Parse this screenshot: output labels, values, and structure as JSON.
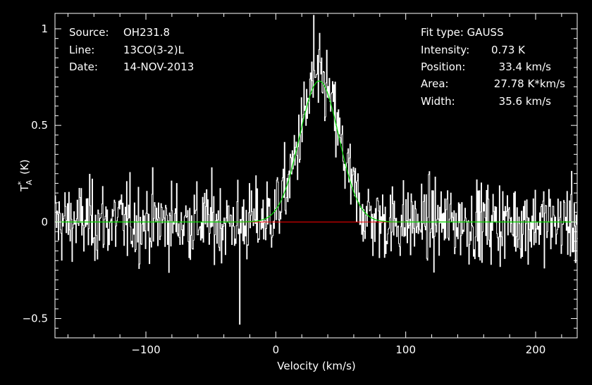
{
  "info_left": [
    {
      "key": "Source:",
      "value": "OH231.8"
    },
    {
      "key": "Line:",
      "value": "13CO(3-2)L"
    },
    {
      "key": "Date:",
      "value": "14-NOV-2013"
    }
  ],
  "info_right": {
    "fit_type": "Fit type: GAUSS",
    "rows": [
      {
        "key": "Intensity:",
        "value": "0.73 K"
      },
      {
        "key": "Position:",
        "value": "33.4 km/s"
      },
      {
        "key": "Area:",
        "value": "27.78 K*km/s"
      },
      {
        "key": "Width:",
        "value": "35.6 km/s"
      }
    ]
  },
  "chart_data": {
    "type": "line",
    "xlabel": "Velocity (km/s)",
    "ylabel_main": "T",
    "ylabel_sup": "*",
    "ylabel_sub": "A",
    "ylabel_unit": "(K)",
    "xlim": [
      -170,
      232
    ],
    "ylim": [
      -0.6,
      1.08
    ],
    "xticks": [
      -100,
      0,
      100,
      200
    ],
    "xtick_labels": [
      "−100",
      "0",
      "100",
      "200"
    ],
    "yticks": [
      -0.5,
      0,
      0.5,
      1
    ],
    "ytick_labels": [
      "−0.5",
      "0",
      "0.5",
      "1"
    ],
    "baseline": {
      "value": 0,
      "color": "#ff0000"
    },
    "gaussian_fit": {
      "amplitude": 0.73,
      "center": 33.4,
      "fwhm": 35.6,
      "color": "#00dd00"
    },
    "spectrum": {
      "color": "#ffffff",
      "channel_width": 0.5,
      "noise_rms": 0.12,
      "peak_value": 1.07,
      "min_value": -0.53
    }
  }
}
